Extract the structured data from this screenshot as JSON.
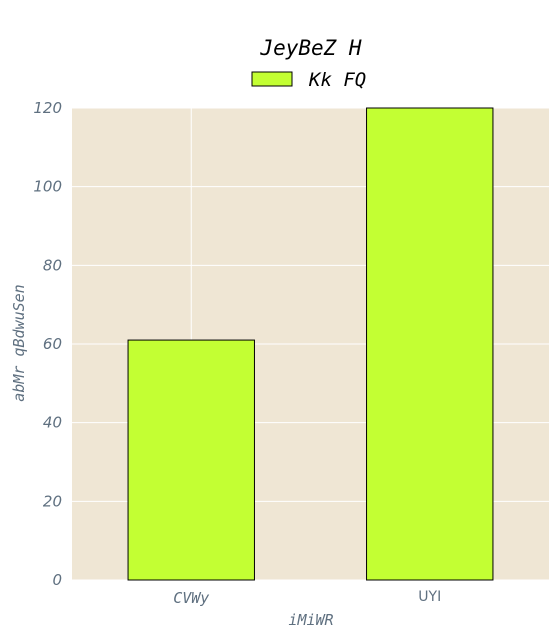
{
  "chart_data": {
    "type": "bar",
    "title": "JeyBeZ H",
    "xlabel": "iMiWR",
    "ylabel": "abMr qBdwuSen",
    "categories": [
      "CVWy",
      "UYI"
    ],
    "series": [
      {
        "name": "Kk FQ",
        "values": [
          61,
          120
        ]
      }
    ],
    "ylim": [
      0,
      120
    ],
    "yticks": [
      0,
      20,
      40,
      60,
      80,
      100,
      120
    ],
    "grid": true,
    "legend_position": "top-center",
    "colors": {
      "bar_fill": "#c3ff33",
      "bar_edge": "#000000",
      "plot_background": "#efe6d4",
      "grid": "#ffffff",
      "tick_text": "#5f7080"
    }
  }
}
